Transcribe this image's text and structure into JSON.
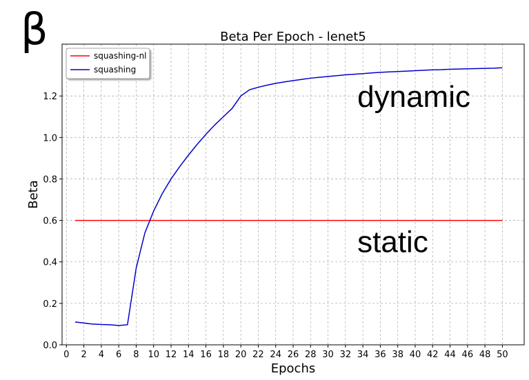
{
  "corner_symbol": "β",
  "chart_data": {
    "type": "line",
    "title": "Beta Per Epoch - lenet5",
    "xlabel": "Epochs",
    "ylabel": "Beta",
    "xlim": [
      -0.5,
      52.5
    ],
    "ylim": [
      0.0,
      1.45
    ],
    "xticks": [
      0,
      2,
      4,
      6,
      8,
      10,
      12,
      14,
      16,
      18,
      20,
      22,
      24,
      26,
      28,
      30,
      32,
      34,
      36,
      38,
      40,
      42,
      44,
      46,
      48,
      50
    ],
    "yticks": [
      0.0,
      0.2,
      0.4,
      0.6,
      0.8,
      1.0,
      1.2
    ],
    "grid": true,
    "legend_position": "top-left",
    "series": [
      {
        "name": "squashing-nl",
        "color": "#ff0000",
        "x": [
          1,
          50
        ],
        "y": [
          0.6,
          0.6
        ]
      },
      {
        "name": "squashing",
        "color": "#0000cc",
        "x": [
          1,
          2,
          3,
          4,
          5,
          6,
          7,
          8,
          9,
          10,
          11,
          12,
          13,
          14,
          15,
          16,
          17,
          18,
          19,
          20,
          21,
          22,
          23,
          24,
          25,
          26,
          27,
          28,
          29,
          30,
          31,
          32,
          33,
          34,
          35,
          36,
          37,
          38,
          39,
          40,
          41,
          42,
          43,
          44,
          45,
          46,
          47,
          48,
          49,
          50
        ],
        "y": [
          0.11,
          0.105,
          0.1,
          0.098,
          0.097,
          0.093,
          0.097,
          0.37,
          0.54,
          0.645,
          0.73,
          0.8,
          0.86,
          0.915,
          0.967,
          1.015,
          1.06,
          1.1,
          1.14,
          1.2,
          1.23,
          1.242,
          1.252,
          1.261,
          1.268,
          1.274,
          1.28,
          1.286,
          1.29,
          1.294,
          1.298,
          1.302,
          1.305,
          1.308,
          1.311,
          1.314,
          1.316,
          1.318,
          1.32,
          1.322,
          1.324,
          1.326,
          1.327,
          1.329,
          1.33,
          1.331,
          1.332,
          1.333,
          1.334,
          1.336
        ]
      }
    ],
    "annotations": [
      {
        "text": "dynamic",
        "x": 34,
        "y": 1.2
      },
      {
        "text": "static",
        "x": 34,
        "y": 0.5
      }
    ]
  }
}
